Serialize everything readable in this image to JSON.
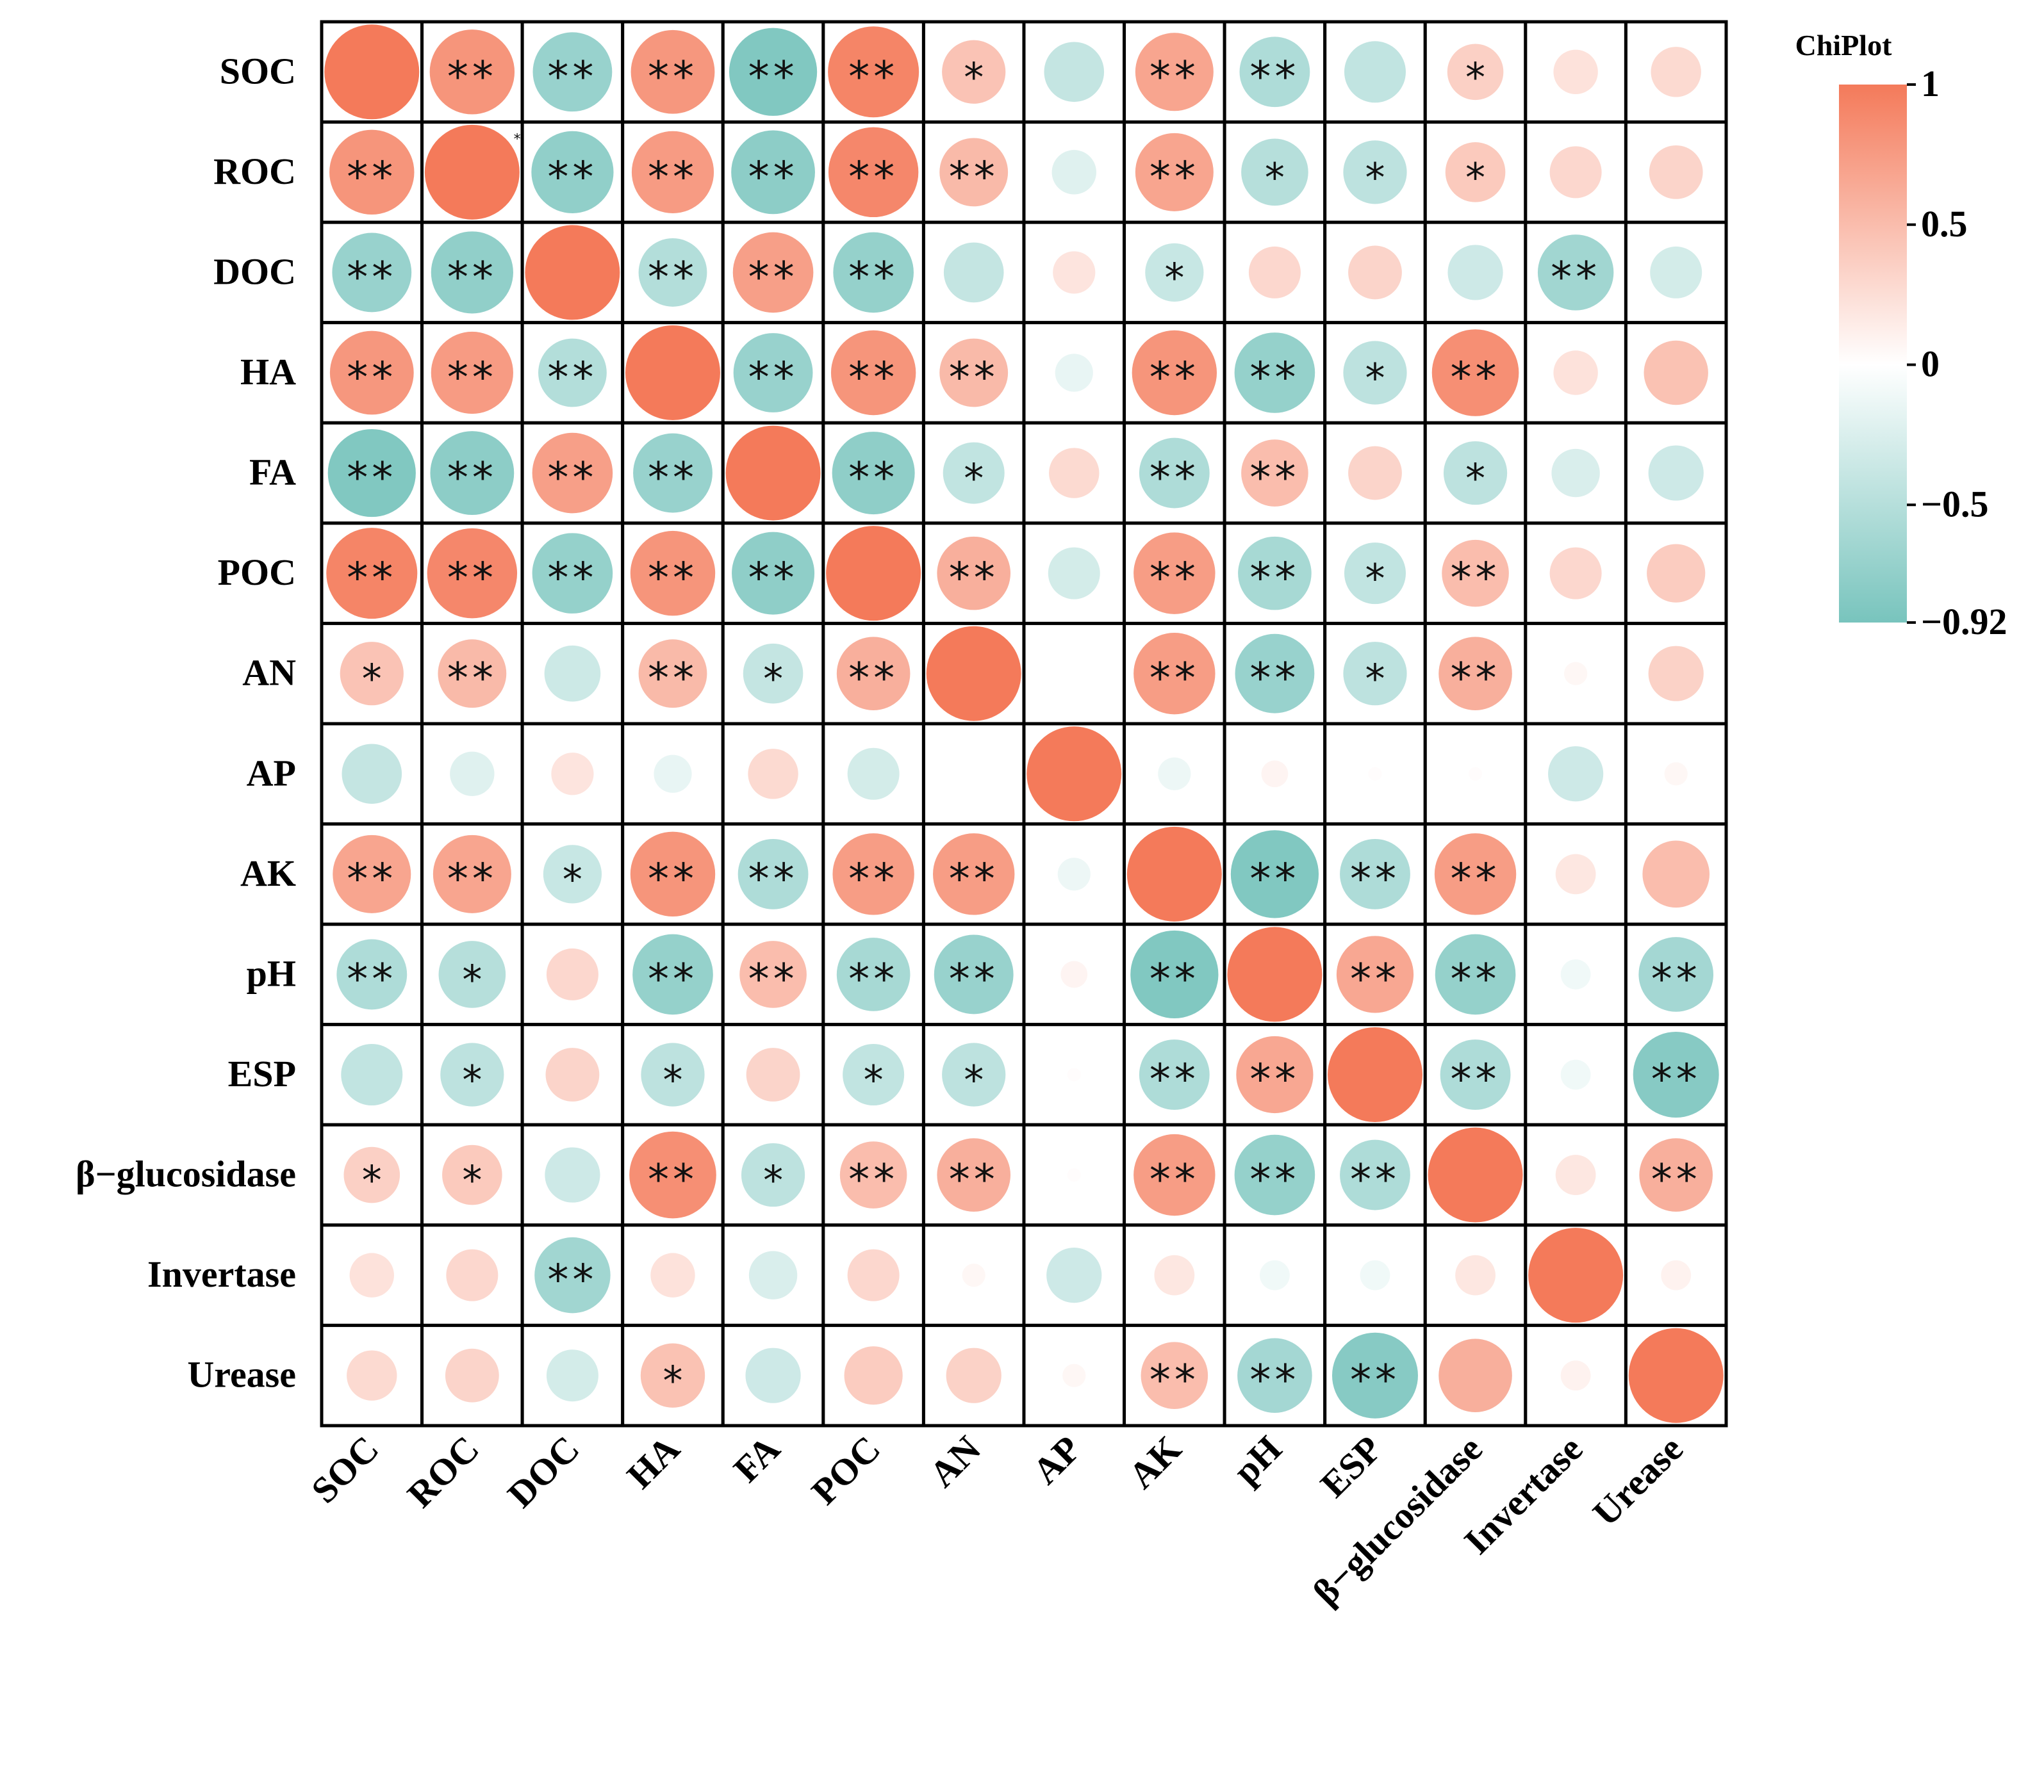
{
  "chart_data": {
    "type": "heatmap",
    "variables": [
      "SOC",
      "ROC",
      "DOC",
      "HA",
      "FA",
      "POC",
      "AN",
      "AP",
      "AK",
      "pH",
      "ESP",
      "β−glucosidase",
      "Invertase",
      "Urease"
    ],
    "values": [
      [
        1.0,
        0.8,
        -0.7,
        0.78,
        -0.86,
        0.92,
        0.45,
        -0.4,
        0.68,
        -0.55,
        -0.42,
        0.35,
        0.22,
        0.28
      ],
      [
        0.8,
        1.0,
        -0.75,
        0.75,
        -0.78,
        0.9,
        0.52,
        -0.22,
        0.68,
        -0.5,
        -0.45,
        0.4,
        0.3,
        0.32
      ],
      [
        -0.7,
        -0.75,
        1.0,
        -0.52,
        0.72,
        -0.72,
        -0.4,
        0.2,
        -0.38,
        0.3,
        0.32,
        -0.34,
        -0.64,
        -0.3
      ],
      [
        0.78,
        0.75,
        -0.52,
        1.0,
        -0.7,
        0.8,
        0.52,
        -0.16,
        0.8,
        -0.72,
        -0.45,
        0.84,
        0.22,
        0.46
      ],
      [
        -0.86,
        -0.78,
        0.72,
        -0.7,
        1.0,
        -0.76,
        -0.42,
        0.28,
        -0.55,
        0.5,
        0.32,
        -0.45,
        -0.26,
        -0.34
      ],
      [
        0.92,
        0.9,
        -0.72,
        0.8,
        -0.76,
        1.0,
        0.6,
        -0.3,
        0.74,
        -0.6,
        -0.42,
        0.5,
        0.3,
        0.38
      ],
      [
        0.45,
        0.52,
        -0.35,
        0.52,
        -0.4,
        0.6,
        1.0,
        0.0,
        0.74,
        -0.7,
        -0.45,
        0.6,
        0.06,
        0.34
      ],
      [
        -0.4,
        -0.22,
        0.2,
        -0.16,
        0.28,
        -0.3,
        0.0,
        1.0,
        -0.12,
        0.08,
        0.02,
        0.02,
        -0.34,
        0.06
      ],
      [
        0.68,
        0.68,
        -0.38,
        0.8,
        -0.55,
        0.74,
        0.74,
        -0.12,
        1.0,
        -0.86,
        -0.55,
        0.74,
        0.18,
        0.5
      ],
      [
        -0.55,
        -0.5,
        0.3,
        -0.72,
        0.5,
        -0.6,
        -0.7,
        0.08,
        -0.86,
        1.0,
        0.66,
        -0.72,
        -0.1,
        -0.62
      ],
      [
        -0.42,
        -0.45,
        0.32,
        -0.45,
        0.32,
        -0.42,
        -0.45,
        0.02,
        -0.55,
        0.66,
        1.0,
        -0.55,
        -0.1,
        -0.82
      ],
      [
        0.35,
        0.4,
        -0.34,
        0.84,
        -0.45,
        0.5,
        0.6,
        0.02,
        0.74,
        -0.72,
        -0.55,
        1.0,
        0.18,
        0.6
      ],
      [
        0.22,
        0.3,
        -0.64,
        0.22,
        -0.26,
        0.3,
        0.06,
        -0.34,
        0.18,
        -0.1,
        -0.1,
        0.18,
        1.0,
        0.1
      ],
      [
        0.28,
        0.32,
        -0.3,
        0.46,
        -0.34,
        0.38,
        0.34,
        0.06,
        0.5,
        -0.62,
        -0.82,
        0.6,
        0.1,
        1.0
      ]
    ],
    "significance": [
      [
        "",
        "**",
        "**",
        "**",
        "**",
        "**",
        "*",
        "",
        "**",
        "**",
        "",
        "*",
        "",
        ""
      ],
      [
        "**",
        "",
        "**",
        "**",
        "**",
        "**",
        "**",
        "",
        "**",
        "*",
        "*",
        "*",
        "",
        ""
      ],
      [
        "**",
        "**",
        "",
        "**",
        "**",
        "**",
        "",
        "",
        "*",
        "",
        "",
        "",
        "**",
        ""
      ],
      [
        "**",
        "**",
        "**",
        "",
        "**",
        "**",
        "**",
        "",
        "**",
        "**",
        "*",
        "**",
        "",
        ""
      ],
      [
        "**",
        "**",
        "**",
        "**",
        "",
        "**",
        "*",
        "",
        "**",
        "**",
        "",
        "*",
        "",
        ""
      ],
      [
        "**",
        "**",
        "**",
        "**",
        "**",
        "",
        "**",
        "",
        "**",
        "**",
        "*",
        "**",
        "",
        ""
      ],
      [
        "*",
        "**",
        "",
        "**",
        "*",
        "**",
        "",
        "",
        "**",
        "**",
        "*",
        "**",
        "",
        ""
      ],
      [
        "",
        "",
        "",
        "",
        "",
        "",
        "",
        "",
        "",
        "",
        "",
        "",
        "",
        ""
      ],
      [
        "**",
        "**",
        "*",
        "**",
        "**",
        "**",
        "**",
        "",
        "",
        "**",
        "**",
        "**",
        "",
        ""
      ],
      [
        "**",
        "*",
        "",
        "**",
        "**",
        "**",
        "**",
        "",
        "**",
        "",
        "**",
        "**",
        "",
        "**"
      ],
      [
        "",
        "*",
        "",
        "*",
        "",
        "*",
        "*",
        "",
        "**",
        "**",
        "",
        "**",
        "",
        "**"
      ],
      [
        "*",
        "*",
        "",
        "**",
        "*",
        "**",
        "**",
        "",
        "**",
        "**",
        "**",
        "",
        "",
        "**"
      ],
      [
        "",
        "",
        "**",
        "",
        "",
        "",
        "",
        "",
        "",
        "",
        "",
        "",
        "",
        ""
      ],
      [
        "",
        "",
        "",
        "*",
        "",
        "",
        "",
        "",
        "**",
        "**",
        "**",
        "",
        "",
        ""
      ]
    ],
    "stray_mark": "*",
    "colorbar": {
      "title": "ChiPlot",
      "min": -0.92,
      "max": 1,
      "ticks": [
        1,
        0.5,
        0,
        -0.5,
        -0.92
      ],
      "tick_labels": [
        "1",
        "0.5",
        "0",
        "−0.5",
        "−0.92"
      ],
      "colors": {
        "positive": "#F47A5A",
        "zero": "#FFFFFF",
        "negative": "#78C4BD"
      }
    }
  }
}
